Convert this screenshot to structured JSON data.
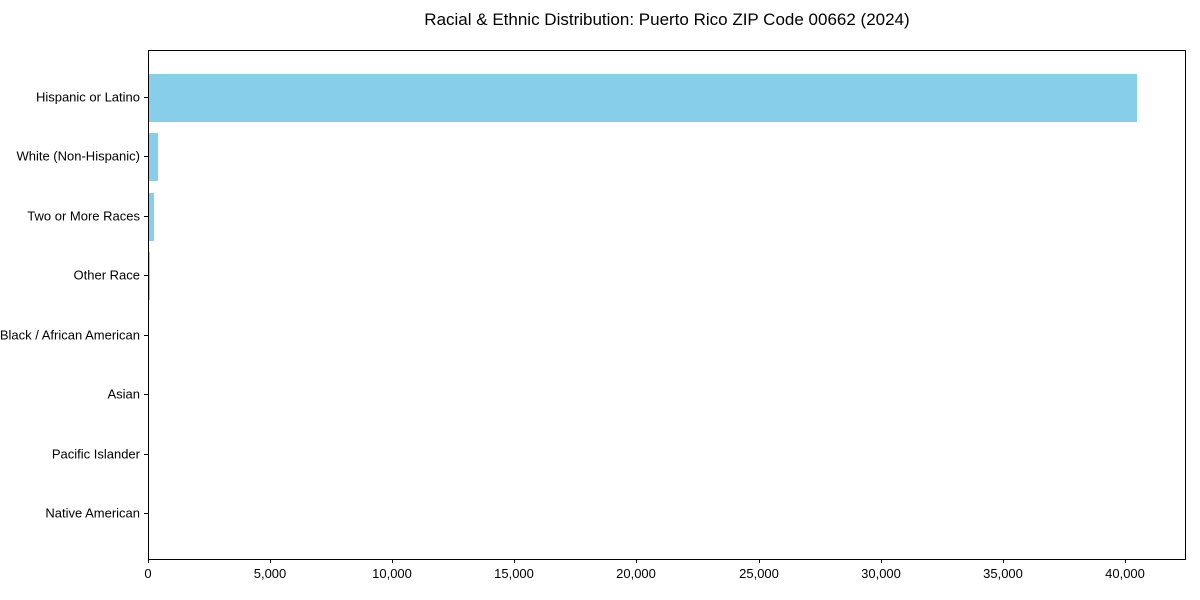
{
  "chart_data": {
    "type": "bar",
    "orientation": "horizontal",
    "title": "Racial & Ethnic Distribution: Puerto Rico ZIP Code 00662 (2024)",
    "categories": [
      "Hispanic or Latino",
      "White (Non-Hispanic)",
      "Two or More Races",
      "Other Race",
      "Black / African American",
      "Asian",
      "Pacific Islander",
      "Native American"
    ],
    "values": [
      40450,
      380,
      190,
      50,
      0,
      0,
      0,
      0
    ],
    "xlabel": "",
    "ylabel": "",
    "xlim": [
      0,
      42500
    ],
    "xticks": [
      0,
      5000,
      10000,
      15000,
      20000,
      25000,
      30000,
      35000,
      40000
    ],
    "xtick_labels": [
      "0",
      "5,000",
      "10,000",
      "15,000",
      "20,000",
      "25,000",
      "30,000",
      "35,000",
      "40,000"
    ],
    "bar_color": "#87CEEB",
    "axis_color": "#000000",
    "text_color": "#000000",
    "grid": false,
    "legend": null
  }
}
